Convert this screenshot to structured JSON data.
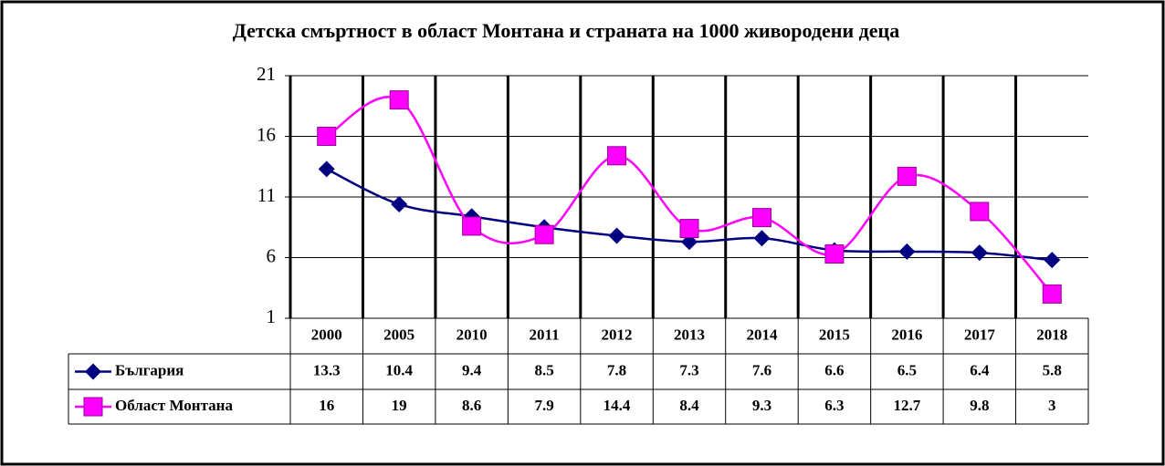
{
  "chart_data": {
    "type": "line",
    "title": "Детска смъртност в област Монтана и страната на 1000 живородени  деца",
    "categories": [
      "2000",
      "2005",
      "2010",
      "2011",
      "2012",
      "2013",
      "2014",
      "2015",
      "2016",
      "2017",
      "2018"
    ],
    "series": [
      {
        "name": "България",
        "color": "#000080",
        "marker": "diamond",
        "values": [
          13.3,
          10.4,
          9.4,
          8.5,
          7.8,
          7.3,
          7.6,
          6.6,
          6.5,
          6.4,
          5.8
        ]
      },
      {
        "name": "Област Монтана",
        "color": "#ff00ff",
        "marker": "square",
        "values": [
          16,
          19,
          8.6,
          7.9,
          14.4,
          8.4,
          9.3,
          6.3,
          12.7,
          9.8,
          3
        ]
      }
    ],
    "ylim": [
      1,
      21
    ],
    "yticks": [
      1,
      6,
      11,
      16,
      21
    ],
    "grid": true
  }
}
